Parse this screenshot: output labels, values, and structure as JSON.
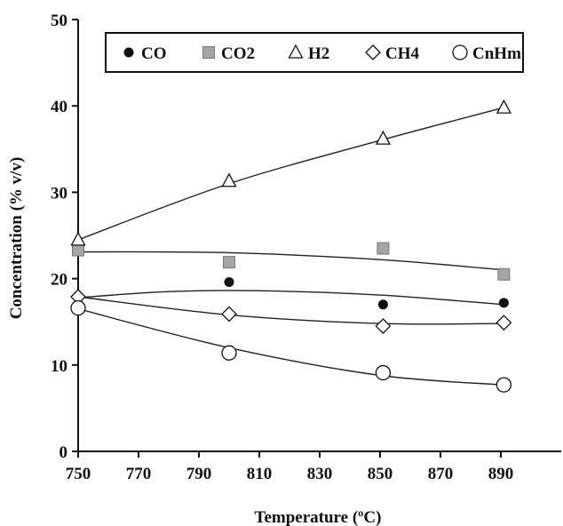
{
  "chart_data": {
    "type": "scatter",
    "title": "",
    "xlabel": "Temperature (ºC)",
    "ylabel": "Concentration (% v/v)",
    "xlim": [
      750,
      910
    ],
    "ylim": [
      0,
      50
    ],
    "xticks": [
      750,
      770,
      790,
      810,
      830,
      850,
      870,
      890
    ],
    "yticks": [
      0,
      10,
      20,
      30,
      40,
      50
    ],
    "grid": false,
    "legend_position": "top",
    "series": [
      {
        "name": "CO",
        "marker": "filled-circle",
        "points": [
          [
            800,
            19.6
          ],
          [
            851,
            17.0
          ],
          [
            891,
            17.2
          ]
        ],
        "trend": [
          [
            750,
            17.8
          ],
          [
            780,
            18.5
          ],
          [
            810,
            18.6
          ],
          [
            850,
            18.1
          ],
          [
            891,
            17.0
          ]
        ]
      },
      {
        "name": "CO2",
        "marker": "gray-square",
        "points": [
          [
            750,
            23.3
          ],
          [
            800,
            21.9
          ],
          [
            851,
            23.5
          ],
          [
            891,
            20.5
          ]
        ],
        "trend": [
          [
            750,
            23.1
          ],
          [
            800,
            23.0
          ],
          [
            850,
            22.2
          ],
          [
            891,
            21.0
          ]
        ]
      },
      {
        "name": "H2",
        "marker": "open-triangle",
        "points": [
          [
            750,
            24.5
          ],
          [
            800,
            31.3
          ],
          [
            851,
            36.2
          ],
          [
            891,
            39.8
          ]
        ],
        "trend": [
          [
            750,
            24.5
          ],
          [
            800,
            31.0
          ],
          [
            850,
            36.0
          ],
          [
            891,
            39.8
          ]
        ]
      },
      {
        "name": "CH4",
        "marker": "open-diamond",
        "points": [
          [
            750,
            17.9
          ],
          [
            800,
            15.9
          ],
          [
            851,
            14.5
          ],
          [
            891,
            14.9
          ]
        ],
        "trend": [
          [
            750,
            17.9
          ],
          [
            800,
            15.8
          ],
          [
            850,
            14.8
          ],
          [
            891,
            14.8
          ]
        ]
      },
      {
        "name": "CnHm",
        "marker": "open-circle",
        "points": [
          [
            750,
            16.6
          ],
          [
            800,
            11.4
          ],
          [
            851,
            9.1
          ],
          [
            891,
            7.7
          ]
        ],
        "trend": [
          [
            750,
            16.5
          ],
          [
            800,
            12.0
          ],
          [
            850,
            8.8
          ],
          [
            891,
            7.7
          ]
        ]
      }
    ]
  },
  "colors": {
    "axis": "#111111",
    "line": "#222222",
    "marker_fill_gray": "#a6a6a6",
    "marker_fill_dark": "#111111",
    "background": "#ffffff"
  }
}
